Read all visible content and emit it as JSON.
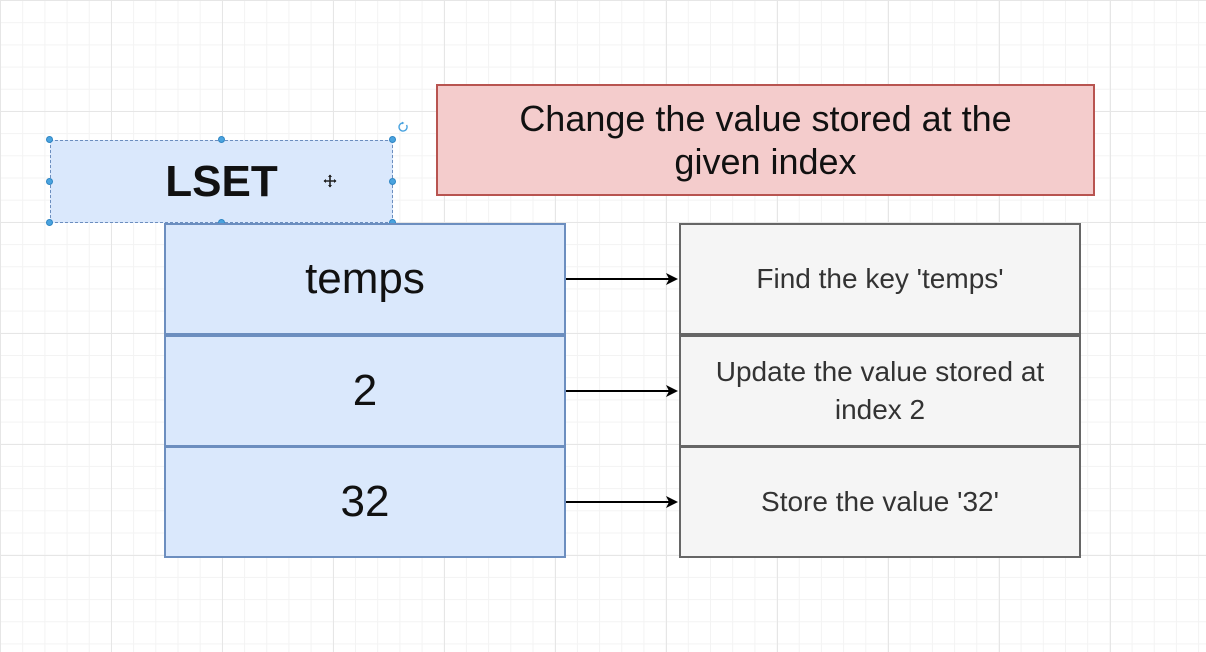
{
  "command": {
    "label": "LSET"
  },
  "description": {
    "text": "Change the value stored at the given index"
  },
  "rows": [
    {
      "arg": "temps",
      "explanation": "Find the key 'temps'"
    },
    {
      "arg": "2",
      "explanation": "Update the value stored at index 2"
    },
    {
      "arg": "32",
      "explanation": "Store the value '32'"
    }
  ],
  "icons": {
    "rotate": "rotate-icon",
    "move_cursor": "move-cursor-icon"
  },
  "colors": {
    "blue_fill": "#dae8fc",
    "blue_border": "#6c8ebf",
    "red_fill": "#f4cccc",
    "red_border": "#b85450",
    "gray_fill": "#f5f5f5",
    "gray_border": "#666666",
    "selection": "#4aa3df"
  }
}
